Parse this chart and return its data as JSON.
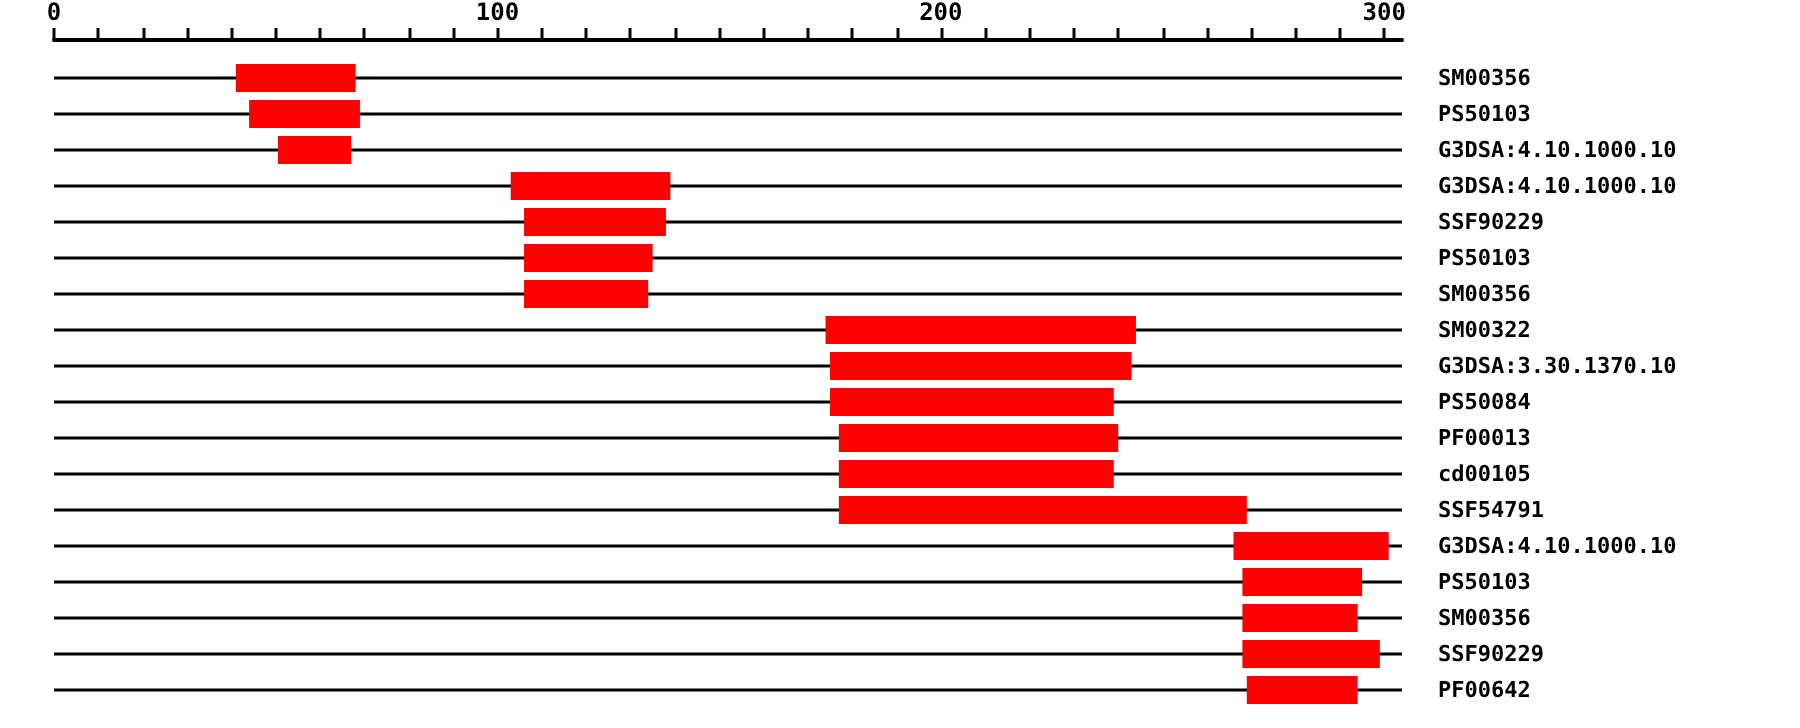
{
  "chart_data": {
    "type": "bar",
    "orientation": "horizontal",
    "categories": [
      "SM00356",
      "PS50103",
      "G3DSA:4.10.1000.10",
      "G3DSA:4.10.1000.10",
      "SSF90229",
      "PS50103",
      "SM00356",
      "SM00322",
      "G3DSA:3.30.1370.10",
      "PS50084",
      "PF00013",
      "cd00105",
      "SSF54791",
      "G3DSA:4.10.1000.10",
      "PS50103",
      "SM00356",
      "SSF90229",
      "PF00642"
    ],
    "base": [
      41,
      44,
      50.5,
      103,
      106,
      106,
      106,
      174,
      175,
      175,
      177,
      177,
      177,
      266,
      268,
      268,
      268,
      269
    ],
    "values": [
      27,
      25,
      16.5,
      36,
      32,
      29,
      28,
      70,
      68,
      64,
      63,
      62,
      92,
      35,
      27,
      26,
      31,
      25
    ],
    "color": "#ff0000",
    "xlim": [
      0,
      304
    ],
    "xticks": [
      0,
      {
        "value": 10,
        "label": null
      },
      {
        "value": 20,
        "label": null
      },
      {
        "value": 30,
        "label": null
      },
      {
        "value": 40,
        "label": null
      },
      {
        "value": 50,
        "label": null
      },
      {
        "value": 60,
        "label": null
      },
      {
        "value": 70,
        "label": null
      },
      {
        "value": 80,
        "label": null
      },
      {
        "value": 90,
        "label": null
      },
      100,
      {
        "value": 110,
        "label": null
      },
      {
        "value": 120,
        "label": null
      },
      {
        "value": 130,
        "label": null
      },
      {
        "value": 140,
        "label": null
      },
      {
        "value": 150,
        "label": null
      },
      {
        "value": 160,
        "label": null
      },
      {
        "value": 170,
        "label": null
      },
      {
        "value": 180,
        "label": null
      },
      {
        "value": 190,
        "label": null
      },
      200,
      {
        "value": 210,
        "label": null
      },
      {
        "value": 220,
        "label": null
      },
      {
        "value": 230,
        "label": null
      },
      {
        "value": 240,
        "label": null
      },
      {
        "value": 250,
        "label": null
      },
      {
        "value": 260,
        "label": null
      },
      {
        "value": 270,
        "label": null
      },
      {
        "value": 280,
        "label": null
      },
      {
        "value": 290,
        "label": null
      },
      300
    ],
    "grid": "y"
  }
}
